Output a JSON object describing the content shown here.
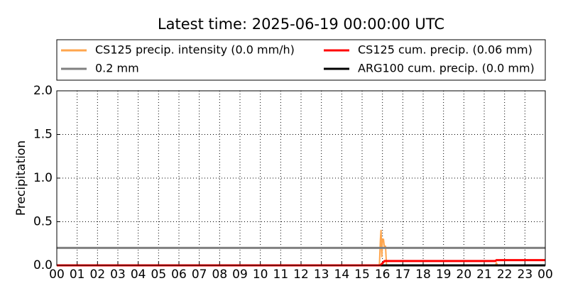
{
  "chart_data": {
    "type": "line",
    "title": "Latest time: 2025-06-19 00:00:00 UTC",
    "y_label": "Precipitation",
    "xlim": [
      0,
      24
    ],
    "xticks": [
      {
        "value": 0,
        "label": "00"
      },
      {
        "value": 1,
        "label": "01"
      },
      {
        "value": 2,
        "label": "02"
      },
      {
        "value": 3,
        "label": "03"
      },
      {
        "value": 4,
        "label": "04"
      },
      {
        "value": 5,
        "label": "05"
      },
      {
        "value": 6,
        "label": "06"
      },
      {
        "value": 7,
        "label": "07"
      },
      {
        "value": 8,
        "label": "08"
      },
      {
        "value": 9,
        "label": "09"
      },
      {
        "value": 10,
        "label": "10"
      },
      {
        "value": 11,
        "label": "11"
      },
      {
        "value": 12,
        "label": "12"
      },
      {
        "value": 13,
        "label": "13"
      },
      {
        "value": 14,
        "label": "14"
      },
      {
        "value": 15,
        "label": "15"
      },
      {
        "value": 16,
        "label": "16"
      },
      {
        "value": 17,
        "label": "17"
      },
      {
        "value": 18,
        "label": "18"
      },
      {
        "value": 19,
        "label": "19"
      },
      {
        "value": 20,
        "label": "20"
      },
      {
        "value": 21,
        "label": "21"
      },
      {
        "value": 22,
        "label": "22"
      },
      {
        "value": 23,
        "label": "23"
      },
      {
        "value": 24,
        "label": "00"
      }
    ],
    "ylim": [
      0,
      2
    ],
    "yticks": [
      {
        "value": 0,
        "label": "0.0"
      },
      0.5,
      {
        "value": 1,
        "label": "1.0"
      },
      1.5,
      {
        "value": 2,
        "label": "2.0"
      }
    ],
    "grid": true,
    "series": [
      {
        "name": "CS125 precip. intensity (0.0 mm/h)",
        "color": "#ffa64d",
        "width": 2,
        "x": [
          0,
          15.85,
          15.9,
          15.93,
          15.97,
          16.0,
          16.05,
          16.1,
          16.15,
          16.2,
          16.25,
          21.55,
          21.6,
          21.65,
          24
        ],
        "values": [
          0,
          0,
          0.3,
          0.4,
          0.1,
          0.3,
          0.3,
          0.2,
          0.22,
          0,
          0,
          0,
          0.03,
          0,
          0
        ]
      },
      {
        "name": "CS125 cum. precip. (0.06 mm)",
        "color": "#ff0000",
        "width": 3,
        "x": [
          0,
          15.9,
          16.1,
          21.55,
          21.6,
          24
        ],
        "values": [
          0,
          0,
          0.05,
          0.05,
          0.06,
          0.06
        ]
      },
      {
        "name": "0.2 mm",
        "color": "#808080",
        "width": 3,
        "x": [
          0,
          24
        ],
        "values": [
          0.2,
          0.2
        ]
      },
      {
        "name": "ARG100 cum. precip. (0.0 mm)",
        "color": "#000000",
        "width": 3,
        "x": [
          0,
          24
        ],
        "values": [
          0,
          0
        ]
      }
    ]
  }
}
